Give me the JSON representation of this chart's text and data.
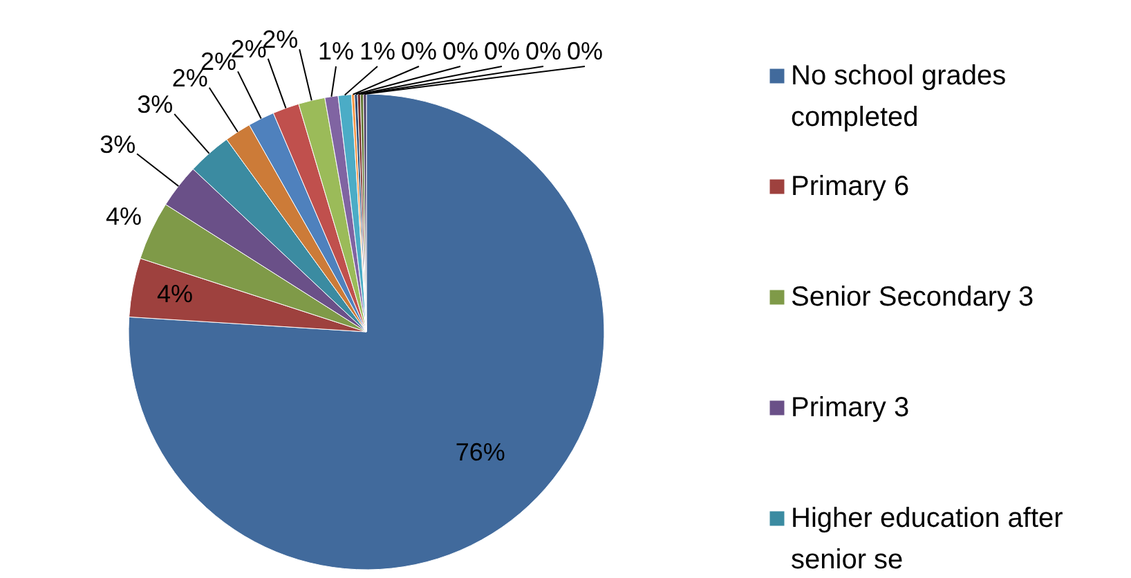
{
  "chart_data": {
    "type": "pie",
    "categories": [
      "No school grades completed",
      "Primary 6",
      "Senior Secondary 3",
      "Primary 3",
      "Higher education after senior se",
      null,
      null,
      null,
      null,
      null,
      null,
      null,
      null,
      null,
      null,
      null
    ],
    "values": [
      76,
      4,
      4,
      3,
      3,
      1.8,
      1.8,
      1.8,
      1.8,
      0.9,
      0.9,
      0.2,
      0.2,
      0.2,
      0.2,
      0.2
    ],
    "value_labels": [
      "76%",
      "4%",
      "4%",
      "3%",
      "3%",
      "2%",
      "2%",
      "2%",
      "2%",
      "1%",
      "1%",
      "0%",
      "0%",
      "0%",
      "0%",
      "0%"
    ],
    "colors": [
      "#416a9c",
      "#9e413e",
      "#7f9a48",
      "#6a5088",
      "#3b8ba1",
      "#cc7b38",
      "#4f81bd",
      "#c0504d",
      "#9bbb59",
      "#8064a2",
      "#4bacc6",
      "#f79646",
      "#2c4d75",
      "#772c2a",
      "#5f7530",
      "#4d3b62"
    ],
    "legend": "right"
  }
}
